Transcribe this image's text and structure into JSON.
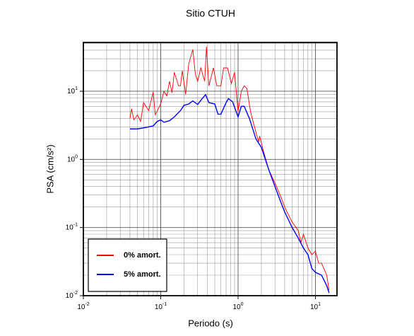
{
  "chart_data": {
    "type": "line",
    "title": "Sitio CTUH",
    "x_label": "Periodo (s)",
    "y_label": "PSA (cm/s²)",
    "x_scale": "log",
    "y_scale": "log",
    "grid": true,
    "legend_position": "lower left",
    "xlim": [
      0.01,
      19
    ],
    "ylim": [
      0.01,
      52
    ],
    "xticks": [
      {
        "value": 0.01,
        "label": "10",
        "exponent": "-2"
      },
      {
        "value": 0.1,
        "label": "10",
        "exponent": "-1"
      },
      {
        "value": 1,
        "label": "10",
        "exponent": "0"
      },
      {
        "value": 10,
        "label": "10",
        "exponent": "1"
      }
    ],
    "yticks": [
      {
        "value": 0.01,
        "label": "10",
        "exponent": "-2"
      },
      {
        "value": 0.1,
        "label": "10",
        "exponent": "-1"
      },
      {
        "value": 1,
        "label": "10",
        "exponent": "0"
      },
      {
        "value": 10,
        "label": "10",
        "exponent": "1"
      }
    ],
    "x_minor_ticks": [
      0.02,
      0.03,
      0.04,
      0.05,
      0.06,
      0.07,
      0.08,
      0.09,
      0.2,
      0.3,
      0.4,
      0.5,
      0.6,
      0.7,
      0.8,
      0.9,
      2,
      3,
      4,
      5,
      6,
      7,
      8,
      9
    ],
    "y_minor_ticks": [
      0.02,
      0.03,
      0.04,
      0.05,
      0.06,
      0.07,
      0.08,
      0.09,
      0.2,
      0.3,
      0.4,
      0.5,
      0.6,
      0.7,
      0.8,
      0.9,
      2,
      3,
      4,
      5,
      6,
      7,
      8,
      9,
      20,
      30,
      40,
      50
    ],
    "series": [
      {
        "name": "0% amort.",
        "color": "#ff0000",
        "x": [
          0.04,
          0.042,
          0.045,
          0.05,
          0.055,
          0.06,
          0.07,
          0.08,
          0.085,
          0.1,
          0.11,
          0.12,
          0.13,
          0.14,
          0.15,
          0.17,
          0.18,
          0.19,
          0.21,
          0.23,
          0.26,
          0.28,
          0.3,
          0.33,
          0.37,
          0.39,
          0.42,
          0.48,
          0.53,
          0.6,
          0.65,
          0.73,
          0.82,
          0.9,
          1.0,
          1.1,
          1.2,
          1.3,
          1.45,
          1.7,
          1.85,
          1.9,
          2.1,
          2.5,
          3,
          3.5,
          4,
          5,
          6,
          6.5,
          7,
          8,
          9,
          10,
          11,
          12,
          14,
          15
        ],
        "values": [
          4.0,
          5.5,
          3.8,
          4.5,
          3.6,
          6.8,
          5.2,
          9.8,
          4.5,
          6.5,
          10,
          8.5,
          14,
          9.5,
          19,
          12,
          12,
          20,
          9,
          25,
          41,
          18,
          14,
          22,
          14,
          45,
          12,
          22,
          12,
          12,
          22,
          22,
          13,
          19,
          5,
          10,
          12,
          11,
          5,
          2.5,
          1.8,
          2.2,
          1.4,
          0.7,
          0.45,
          0.3,
          0.2,
          0.12,
          0.09,
          0.06,
          0.08,
          0.05,
          0.04,
          0.045,
          0.03,
          0.03,
          0.02,
          0.012
        ]
      },
      {
        "name": "5% amort.",
        "color": "#0000ff",
        "x": [
          0.04,
          0.05,
          0.06,
          0.07,
          0.08,
          0.09,
          0.1,
          0.11,
          0.13,
          0.15,
          0.18,
          0.2,
          0.23,
          0.26,
          0.3,
          0.35,
          0.38,
          0.42,
          0.5,
          0.55,
          0.6,
          0.7,
          0.75,
          0.85,
          1.0,
          1.1,
          1.2,
          1.4,
          1.7,
          2.0,
          2.5,
          3,
          3.5,
          4,
          5,
          6,
          7,
          8,
          9,
          10,
          12,
          14,
          15
        ],
        "values": [
          2.8,
          2.8,
          2.9,
          3.0,
          3.1,
          3.6,
          3.8,
          3.5,
          3.7,
          4.2,
          5.2,
          6.2,
          6.5,
          7.2,
          6.4,
          8.0,
          8.9,
          6.8,
          6.5,
          4.6,
          4.6,
          6.8,
          7.8,
          7.0,
          4.2,
          6.0,
          6.0,
          4.0,
          2.0,
          1.5,
          0.7,
          0.4,
          0.25,
          0.17,
          0.1,
          0.07,
          0.05,
          0.04,
          0.025,
          0.022,
          0.02,
          0.014,
          0.011
        ]
      }
    ]
  }
}
